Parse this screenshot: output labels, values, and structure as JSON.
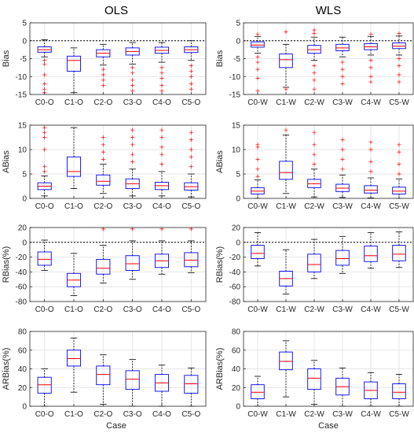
{
  "columns": [
    {
      "title": "OLS",
      "xlabel": "Case"
    },
    {
      "title": "WLS",
      "xlabel": "Case"
    }
  ],
  "colors": {
    "box": "#0000ff",
    "median": "#ff0000",
    "outlier": "#ff0000",
    "whisker": "#000000",
    "grid": "#e6e6e6",
    "axis": "#262626"
  },
  "chart_data": [
    {
      "type": "box",
      "panel": "OLS-Bias",
      "ylabel": "Bias",
      "ylim": [
        -15,
        5
      ],
      "yticks": [
        -15,
        -10,
        -5,
        0,
        5
      ],
      "zero_line": 0,
      "grid": true,
      "categories": [
        "C0-O",
        "C1-O",
        "C2-O",
        "C3-O",
        "C4-O",
        "C5-O"
      ],
      "boxes": [
        {
          "min": -4.5,
          "q1": -3.2,
          "median": -2.5,
          "q3": -1.7,
          "max": 0.3,
          "outliers": [
            -5.5,
            -6.5,
            -9.5,
            -12,
            -13.5,
            -14.5
          ]
        },
        {
          "min": -14.5,
          "q1": -8.5,
          "median": -5.5,
          "q3": -4.3,
          "max": -2,
          "outliers": []
        },
        {
          "min": -6.8,
          "q1": -4.5,
          "median": -3.5,
          "q3": -2.5,
          "max": -1,
          "outliers": [
            -8,
            -9.5,
            -11,
            -12.5
          ]
        },
        {
          "min": -6.5,
          "q1": -4,
          "median": -3,
          "q3": -2,
          "max": -0.5,
          "outliers": [
            -7.5,
            -9,
            -11,
            -12.5,
            -14
          ]
        },
        {
          "min": -6,
          "q1": -3.5,
          "median": -2.7,
          "q3": -1.8,
          "max": -0.5,
          "outliers": [
            -7.5,
            -9,
            -10.5,
            -12.5,
            -14
          ]
        },
        {
          "min": -5.5,
          "q1": -3.3,
          "median": -2.5,
          "q3": -1.7,
          "max": 0,
          "outliers": [
            -7,
            -8.5,
            -10,
            -12,
            -13.5
          ]
        }
      ]
    },
    {
      "type": "box",
      "panel": "WLS-Bias",
      "ylabel": "Bias",
      "ylim": [
        -15,
        5
      ],
      "yticks": [
        -15,
        -10,
        -5,
        0,
        5
      ],
      "zero_line": 0,
      "grid": true,
      "categories": [
        "C0-W",
        "C1-W",
        "C2-W",
        "C3-W",
        "C4-W",
        "C5-W"
      ],
      "boxes": [
        {
          "min": -3.5,
          "q1": -1.8,
          "median": -1.2,
          "q3": -0.3,
          "max": 1.2,
          "outliers": [
            1.8,
            -4.5,
            -6,
            -8,
            -10.5,
            -14
          ]
        },
        {
          "min": -13,
          "q1": -7.5,
          "median": -5.3,
          "q3": -3.7,
          "max": -1,
          "outliers": [
            2.5,
            -13.5
          ]
        },
        {
          "min": -5.5,
          "q1": -3.5,
          "median": -2.5,
          "q3": -1.3,
          "max": 1,
          "outliers": [
            2,
            3,
            -7,
            -9,
            -11,
            -13.5
          ]
        },
        {
          "min": -4.5,
          "q1": -2.8,
          "median": -2,
          "q3": -1,
          "max": 1,
          "outliers": [
            -6,
            -8,
            -10,
            -12
          ]
        },
        {
          "min": -4,
          "q1": -2.5,
          "median": -1.7,
          "q3": -0.8,
          "max": 1.2,
          "outliers": [
            1.8,
            -5.5,
            -7.5,
            -10,
            -11.5
          ]
        },
        {
          "min": -4,
          "q1": -2.2,
          "median": -1.5,
          "q3": -0.6,
          "max": 1.3,
          "outliers": [
            2,
            -5,
            -7,
            -9.5,
            -11.5
          ]
        }
      ]
    },
    {
      "type": "box",
      "panel": "OLS-ABias",
      "ylabel": "ABias",
      "ylim": [
        0,
        15
      ],
      "yticks": [
        0,
        5,
        10,
        15
      ],
      "grid": true,
      "categories": [
        "C0-O",
        "C1-O",
        "C2-O",
        "C3-O",
        "C4-O",
        "C5-O"
      ],
      "boxes": [
        {
          "min": 0.5,
          "q1": 1.8,
          "median": 2.5,
          "q3": 3.2,
          "max": 4.6,
          "outliers": [
            5.5,
            6.5,
            10,
            12.5,
            13.5,
            14.5
          ]
        },
        {
          "min": 2,
          "q1": 4.5,
          "median": 5.5,
          "q3": 8.5,
          "max": 14.5,
          "outliers": []
        },
        {
          "min": 1,
          "q1": 2.7,
          "median": 3.5,
          "q3": 4.8,
          "max": 7,
          "outliers": [
            8,
            9.5,
            11,
            12.5
          ]
        },
        {
          "min": 0.5,
          "q1": 2,
          "median": 3,
          "q3": 4,
          "max": 6,
          "outliers": [
            7.5,
            9,
            11,
            12.5,
            14
          ]
        },
        {
          "min": 0.5,
          "q1": 1.8,
          "median": 2.6,
          "q3": 3.3,
          "max": 5.5,
          "outliers": [
            7,
            9,
            10.5,
            12.5,
            14
          ]
        },
        {
          "min": 0.3,
          "q1": 1.7,
          "median": 2.4,
          "q3": 3.2,
          "max": 5,
          "outliers": [
            6.5,
            8.5,
            10,
            12,
            13.5
          ]
        }
      ]
    },
    {
      "type": "box",
      "panel": "WLS-ABias",
      "ylabel": "ABias",
      "ylim": [
        0,
        15
      ],
      "yticks": [
        0,
        5,
        10,
        15
      ],
      "grid": true,
      "categories": [
        "C0-W",
        "C1-W",
        "C2-W",
        "C3-W",
        "C4-W",
        "C5-W"
      ],
      "boxes": [
        {
          "min": 0,
          "q1": 0.9,
          "median": 1.5,
          "q3": 2.2,
          "max": 3.8,
          "outliers": [
            4.5,
            6,
            8,
            10.5,
            11
          ]
        },
        {
          "min": 1,
          "q1": 3.9,
          "median": 5.3,
          "q3": 7.6,
          "max": 13,
          "outliers": [
            14
          ]
        },
        {
          "min": 0.3,
          "q1": 2.2,
          "median": 3,
          "q3": 3.9,
          "max": 6,
          "outliers": [
            7,
            9,
            11,
            13.5
          ]
        },
        {
          "min": 0.2,
          "q1": 1.4,
          "median": 2.1,
          "q3": 2.9,
          "max": 4.8,
          "outliers": [
            6,
            8,
            10,
            12
          ]
        },
        {
          "min": 0.1,
          "q1": 1.1,
          "median": 1.7,
          "q3": 2.6,
          "max": 4.2,
          "outliers": [
            5.5,
            7.5,
            10,
            11.5
          ]
        },
        {
          "min": 0,
          "q1": 0.9,
          "median": 1.5,
          "q3": 2.3,
          "max": 4,
          "outliers": [
            5,
            7,
            9.5,
            11
          ]
        }
      ]
    },
    {
      "type": "box",
      "panel": "OLS-RBias",
      "ylabel": "RBias(%)",
      "ylim": [
        -80,
        20
      ],
      "yticks": [
        -80,
        -60,
        -40,
        -20,
        0,
        20
      ],
      "zero_line": 0,
      "grid": true,
      "categories": [
        "C0-O",
        "C1-O",
        "C2-O",
        "C3-O",
        "C4-O",
        "C5-O"
      ],
      "boxes": [
        {
          "min": -38,
          "q1": -31,
          "median": -23,
          "q3": -13,
          "max": 3,
          "outliers": []
        },
        {
          "min": -72,
          "q1": -60,
          "median": -51,
          "q3": -42,
          "max": -15,
          "outliers": []
        },
        {
          "min": -55,
          "q1": -43,
          "median": -35,
          "q3": -23,
          "max": -4,
          "outliers": [
            18
          ]
        },
        {
          "min": -50,
          "q1": -38,
          "median": -29,
          "q3": -18,
          "max": 2,
          "outliers": [
            18
          ]
        },
        {
          "min": -43,
          "q1": -34,
          "median": -25,
          "q3": -16,
          "max": 2,
          "outliers": [
            18
          ]
        },
        {
          "min": -41,
          "q1": -33,
          "median": -24,
          "q3": -14,
          "max": 2,
          "outliers": [
            18
          ]
        }
      ]
    },
    {
      "type": "box",
      "panel": "WLS-RBias",
      "ylabel": "RBias(%)",
      "ylim": [
        -80,
        20
      ],
      "yticks": [
        -80,
        -60,
        -40,
        -20,
        0,
        20
      ],
      "zero_line": 0,
      "grid": true,
      "categories": [
        "C0-W",
        "C1-W",
        "C2-W",
        "C3-W",
        "C4-W",
        "C5-W"
      ],
      "boxes": [
        {
          "min": -32,
          "q1": -22,
          "median": -15,
          "q3": -4,
          "max": 13,
          "outliers": []
        },
        {
          "min": -70,
          "q1": -59,
          "median": -49,
          "q3": -39,
          "max": -10,
          "outliers": []
        },
        {
          "min": -49,
          "q1": -40,
          "median": -30,
          "q3": -16,
          "max": 4,
          "outliers": []
        },
        {
          "min": -42,
          "q1": -31,
          "median": -22,
          "q3": -11,
          "max": 8,
          "outliers": []
        },
        {
          "min": -35,
          "q1": -26,
          "median": -18,
          "q3": -5,
          "max": 13,
          "outliers": []
        },
        {
          "min": -34,
          "q1": -25,
          "median": -16,
          "q3": -4,
          "max": 14,
          "outliers": []
        }
      ]
    },
    {
      "type": "box",
      "panel": "OLS-ARBias",
      "ylabel": "ARBias(%)",
      "xlabel": "Case",
      "ylim": [
        0,
        80
      ],
      "yticks": [
        0,
        20,
        40,
        60,
        80
      ],
      "grid": true,
      "categories": [
        "C0-O",
        "C1-O",
        "C2-O",
        "C3-O",
        "C4-O",
        "C5-O"
      ],
      "boxes": [
        {
          "min": 0,
          "q1": 14,
          "median": 23,
          "q3": 31,
          "max": 40,
          "outliers": []
        },
        {
          "min": 15,
          "q1": 43,
          "median": 51,
          "q3": 60,
          "max": 73,
          "outliers": []
        },
        {
          "min": 2,
          "q1": 23,
          "median": 34,
          "q3": 43,
          "max": 55,
          "outliers": []
        },
        {
          "min": 0,
          "q1": 18,
          "median": 29,
          "q3": 38,
          "max": 50,
          "outliers": []
        },
        {
          "min": 0,
          "q1": 16,
          "median": 25,
          "q3": 34,
          "max": 44,
          "outliers": []
        },
        {
          "min": 0,
          "q1": 14,
          "median": 24,
          "q3": 33,
          "max": 41,
          "outliers": []
        }
      ]
    },
    {
      "type": "box",
      "panel": "WLS-ARBias",
      "ylabel": "ARBias(%)",
      "xlabel": "Case",
      "ylim": [
        0,
        80
      ],
      "yticks": [
        0,
        20,
        40,
        60,
        80
      ],
      "grid": true,
      "categories": [
        "C0-W",
        "C1-W",
        "C2-W",
        "C3-W",
        "C4-W",
        "C5-W"
      ],
      "boxes": [
        {
          "min": 0,
          "q1": 8,
          "median": 15,
          "q3": 23,
          "max": 32,
          "outliers": []
        },
        {
          "min": 10,
          "q1": 39,
          "median": 48,
          "q3": 58,
          "max": 70,
          "outliers": []
        },
        {
          "min": 2,
          "q1": 18,
          "median": 30,
          "q3": 40,
          "max": 49,
          "outliers": []
        },
        {
          "min": 0,
          "q1": 12,
          "median": 21,
          "q3": 30,
          "max": 41,
          "outliers": []
        },
        {
          "min": 0,
          "q1": 8,
          "median": 17,
          "q3": 26,
          "max": 36,
          "outliers": []
        },
        {
          "min": 0,
          "q1": 8,
          "median": 15,
          "q3": 24,
          "max": 34,
          "outliers": []
        }
      ]
    }
  ]
}
